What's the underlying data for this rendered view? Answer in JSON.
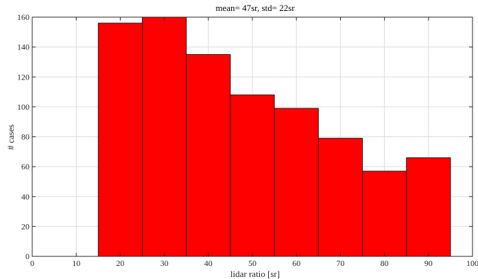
{
  "chart_data": {
    "type": "bar",
    "title": "mean= 47sr, std= 22sr",
    "xlabel": "lidar ratio [sr]",
    "ylabel": "# cases",
    "bin_edges": [
      15,
      25,
      35,
      45,
      55,
      65,
      75,
      85,
      95
    ],
    "values": [
      156,
      160,
      135,
      108,
      99,
      79,
      57,
      66
    ],
    "xlim": [
      0,
      100
    ],
    "ylim": [
      0,
      160
    ],
    "xticks": [
      0,
      10,
      20,
      30,
      40,
      50,
      60,
      70,
      80,
      90,
      100
    ],
    "yticks": [
      0,
      20,
      40,
      60,
      80,
      100,
      120,
      140,
      160
    ],
    "grid": true,
    "bar_color": "#ff0000",
    "edge_color": "#1a1a1a"
  }
}
